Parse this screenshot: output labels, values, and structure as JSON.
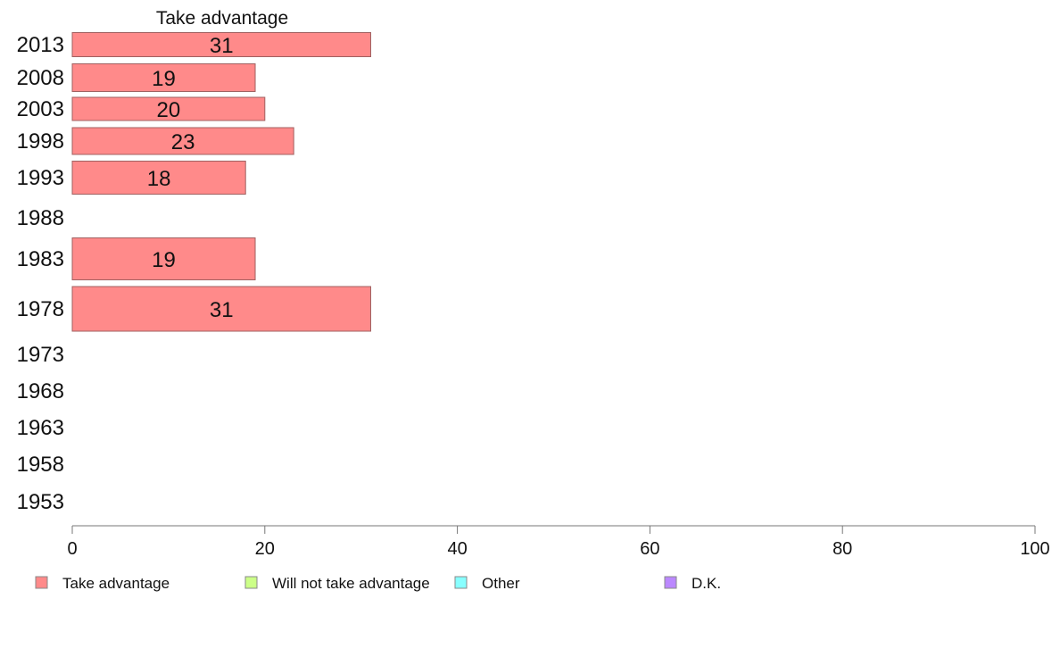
{
  "chart_data": {
    "type": "bar",
    "orientation": "horizontal",
    "title": "Take advantage",
    "categories": [
      "2013",
      "2008",
      "2003",
      "1998",
      "1993",
      "1988",
      "1983",
      "1978",
      "1973",
      "1968",
      "1963",
      "1958",
      "1953"
    ],
    "series": [
      {
        "name": "Take advantage",
        "color": "#ff8a8a",
        "values": [
          31,
          19,
          20,
          23,
          18,
          null,
          19,
          31,
          null,
          null,
          null,
          null,
          null
        ]
      }
    ],
    "xlim": [
      0,
      100
    ],
    "xticks": [
      "0",
      "20",
      "40",
      "60",
      "80",
      "100"
    ],
    "grid": false,
    "legend_position": "bottom",
    "legend": [
      {
        "label": "Take advantage",
        "color": "#ff8a8a"
      },
      {
        "label": "Will not take advantage",
        "color": "#ccff88"
      },
      {
        "label": "Other",
        "color": "#88ffff"
      },
      {
        "label": "D.K.",
        "color": "#bb88ff"
      }
    ]
  }
}
